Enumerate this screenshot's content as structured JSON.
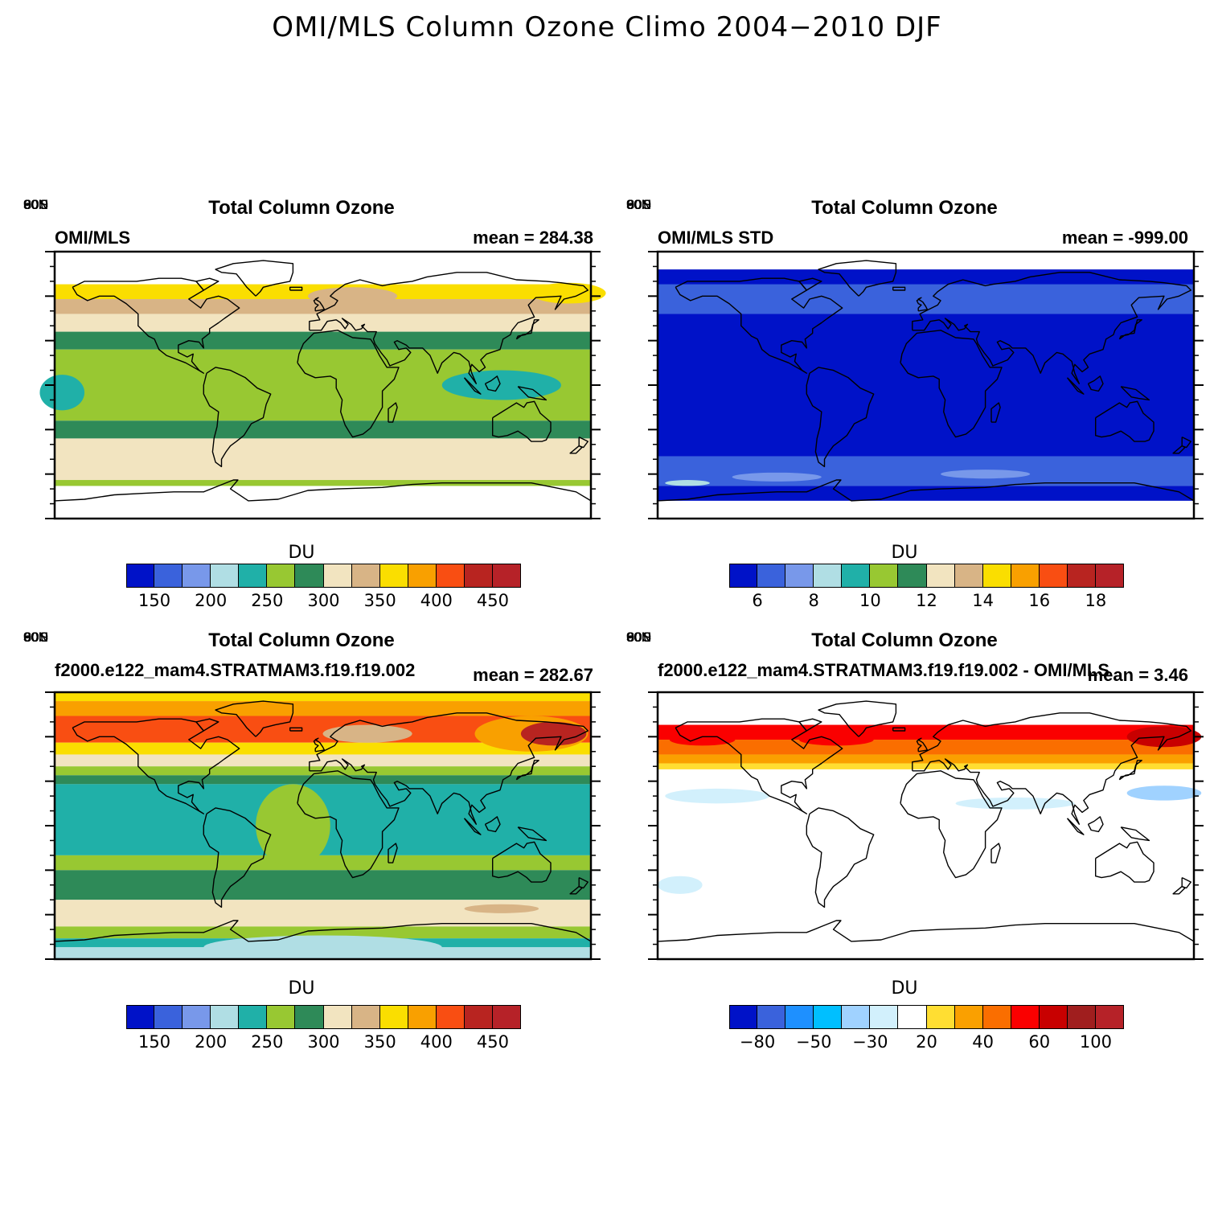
{
  "title": "OMI/MLS Column Ozone Climo 2004−2010 DJF",
  "lat_ticks": [
    "90N",
    "60N",
    "30N",
    "0",
    "30S",
    "60S",
    "90S"
  ],
  "panels": [
    {
      "title": "Total Column Ozone",
      "left_label": "OMI/MLS",
      "right_label": "mean = 284.38",
      "colorbar_label": "DU",
      "colorbar_ticks": [
        "150",
        "200",
        "250",
        "300",
        "350",
        "400",
        "450"
      ],
      "colorbar_colors": [
        "#0012c8",
        "#3a62dc",
        "#7898ea",
        "#b0dee4",
        "#20b0a8",
        "#98c832",
        "#2e8a58",
        "#f2e4c0",
        "#d8b486",
        "#fade00",
        "#f9a000",
        "#f94e12",
        "#b82420",
        "#b62228"
      ],
      "bands": [
        {
          "lat_top": 68,
          "lat_bot": 58,
          "color": "#fade00"
        },
        {
          "lat_top": 58,
          "lat_bot": 48,
          "color": "#d8b486"
        },
        {
          "lat_top": 48,
          "lat_bot": 36,
          "color": "#f2e4c0"
        },
        {
          "lat_top": 36,
          "lat_bot": 24,
          "color": "#2e8a58"
        },
        {
          "lat_top": 24,
          "lat_bot": -24,
          "color": "#98c832"
        },
        {
          "lat_top": -24,
          "lat_bot": -36,
          "color": "#2e8a58"
        },
        {
          "lat_top": -36,
          "lat_bot": -64,
          "color": "#f2e4c0"
        },
        {
          "lat_top": -64,
          "lat_bot": -68,
          "color": "#98c832"
        }
      ],
      "patches": [
        {
          "lon": 120,
          "lat": 0,
          "rlon": 40,
          "rlat": 10,
          "color": "#20b0a8"
        },
        {
          "lon": -175,
          "lat": -5,
          "rlon": 15,
          "rlat": 12,
          "color": "#20b0a8"
        },
        {
          "lon": 165,
          "lat": 62,
          "rlon": 25,
          "rlat": 7,
          "color": "#fade00"
        },
        {
          "lon": 20,
          "lat": 60,
          "rlon": 30,
          "rlat": 6,
          "color": "#d8b486"
        }
      ]
    },
    {
      "title": "Total Column Ozone",
      "left_label": "OMI/MLS STD",
      "right_label": "mean = -999.00",
      "colorbar_label": "DU",
      "colorbar_ticks": [
        "6",
        "8",
        "10",
        "12",
        "14",
        "16",
        "18"
      ],
      "colorbar_colors": [
        "#0012c8",
        "#3a62dc",
        "#7898ea",
        "#b0dee4",
        "#20b0a8",
        "#98c832",
        "#2e8a58",
        "#f2e4c0",
        "#d8b486",
        "#fade00",
        "#f9a000",
        "#f94e12",
        "#b82420",
        "#b62228"
      ],
      "bands": [
        {
          "lat_top": 78,
          "lat_bot": 62,
          "color": "#0012c8"
        },
        {
          "lat_top": 68,
          "lat_bot": 48,
          "color": "#3a62dc"
        },
        {
          "lat_top": 48,
          "lat_bot": -48,
          "color": "#0012c8"
        },
        {
          "lat_top": -48,
          "lat_bot": -68,
          "color": "#3a62dc"
        },
        {
          "lat_top": -68,
          "lat_bot": -78,
          "color": "#0012c8"
        }
      ],
      "patches": [
        {
          "lon": -100,
          "lat": -62,
          "rlon": 30,
          "rlat": 3,
          "color": "#7898ea"
        },
        {
          "lon": 40,
          "lat": -60,
          "rlon": 30,
          "rlat": 3,
          "color": "#7898ea"
        },
        {
          "lon": -160,
          "lat": -66,
          "rlon": 15,
          "rlat": 2,
          "color": "#b0dee4"
        }
      ]
    },
    {
      "title": "Total Column Ozone",
      "left_label": "f2000.e122_mam4.STRATMAM3.f19.f19.002",
      "right_label": "mean = 282.67",
      "colorbar_label": "DU",
      "colorbar_ticks": [
        "150",
        "200",
        "250",
        "300",
        "350",
        "400",
        "450"
      ],
      "colorbar_colors": [
        "#0012c8",
        "#3a62dc",
        "#7898ea",
        "#b0dee4",
        "#20b0a8",
        "#98c832",
        "#2e8a58",
        "#f2e4c0",
        "#d8b486",
        "#fade00",
        "#f9a000",
        "#f94e12",
        "#b82420",
        "#b62228"
      ],
      "bands": [
        {
          "lat_top": 90,
          "lat_bot": 84,
          "color": "#fade00"
        },
        {
          "lat_top": 84,
          "lat_bot": 74,
          "color": "#f9a000"
        },
        {
          "lat_top": 74,
          "lat_bot": 56,
          "color": "#f94e12"
        },
        {
          "lat_top": 56,
          "lat_bot": 48,
          "color": "#fade00"
        },
        {
          "lat_top": 48,
          "lat_bot": 40,
          "color": "#f2e4c0"
        },
        {
          "lat_top": 40,
          "lat_bot": 34,
          "color": "#98c832"
        },
        {
          "lat_top": 34,
          "lat_bot": 28,
          "color": "#2e8a58"
        },
        {
          "lat_top": 28,
          "lat_bot": -20,
          "color": "#20b0a8"
        },
        {
          "lat_top": -20,
          "lat_bot": -30,
          "color": "#98c832"
        },
        {
          "lat_top": -30,
          "lat_bot": -50,
          "color": "#2e8a58"
        },
        {
          "lat_top": -50,
          "lat_bot": -68,
          "color": "#f2e4c0"
        },
        {
          "lat_top": -68,
          "lat_bot": -76,
          "color": "#98c832"
        },
        {
          "lat_top": -76,
          "lat_bot": -82,
          "color": "#20b0a8"
        },
        {
          "lat_top": -82,
          "lat_bot": -90,
          "color": "#b0dee4"
        }
      ],
      "patches": [
        {
          "lon": -20,
          "lat": 0,
          "rlon": 25,
          "rlat": 28,
          "color": "#98c832"
        },
        {
          "lon": 140,
          "lat": 62,
          "rlon": 38,
          "rlat": 12,
          "color": "#f9a000"
        },
        {
          "lon": 155,
          "lat": 62,
          "rlon": 22,
          "rlat": 8,
          "color": "#b82420"
        },
        {
          "lon": 30,
          "lat": 62,
          "rlon": 30,
          "rlat": 6,
          "color": "#d8b486"
        },
        {
          "lon": 120,
          "lat": -56,
          "rlon": 25,
          "rlat": 3,
          "color": "#d8b486"
        },
        {
          "lon": 0,
          "lat": -82,
          "rlon": 80,
          "rlat": 8,
          "color": "#b0dee4"
        }
      ]
    },
    {
      "title": "Total Column Ozone",
      "left_label": "f2000.e122_mam4.STRATMAM3.f19.f19.002 - OMI/MLS",
      "right_label": "mean = 3.46",
      "colorbar_label": "DU",
      "colorbar_ticks": [
        "−80",
        "−50",
        "−30",
        "20",
        "40",
        "60",
        "100"
      ],
      "colorbar_colors": [
        "#0012c8",
        "#3a62dc",
        "#1e90ff",
        "#00bfff",
        "#a0d2ff",
        "#d2f0fc",
        "#ffffff",
        "#ffde32",
        "#faa000",
        "#fa6e00",
        "#fa0000",
        "#c80000",
        "#a01e1e",
        "#b62228"
      ],
      "bands": [
        {
          "lat_top": 68,
          "lat_bot": 58,
          "color": "#fa0000"
        },
        {
          "lat_top": 58,
          "lat_bot": 48,
          "color": "#fa6e00"
        },
        {
          "lat_top": 48,
          "lat_bot": 42,
          "color": "#faa000"
        },
        {
          "lat_top": 42,
          "lat_bot": 38,
          "color": "#ffde32"
        }
      ],
      "patches": [
        {
          "lon": -140,
          "lat": 20,
          "rlon": 35,
          "rlat": 5,
          "color": "#d2f0fc"
        },
        {
          "lon": 160,
          "lat": 22,
          "rlon": 25,
          "rlat": 5,
          "color": "#a0d2ff"
        },
        {
          "lon": 60,
          "lat": 15,
          "rlon": 40,
          "rlat": 4,
          "color": "#d2f0fc"
        },
        {
          "lon": -165,
          "lat": -40,
          "rlon": 15,
          "rlat": 6,
          "color": "#d2f0fc"
        },
        {
          "lon": 160,
          "lat": 60,
          "rlon": 25,
          "rlat": 7,
          "color": "#c80000"
        },
        {
          "lon": -150,
          "lat": 58,
          "rlon": 22,
          "rlat": 4,
          "color": "#fa0000"
        },
        {
          "lon": -60,
          "lat": 58,
          "rlon": 25,
          "rlat": 4,
          "color": "#fa0000"
        }
      ]
    }
  ]
}
